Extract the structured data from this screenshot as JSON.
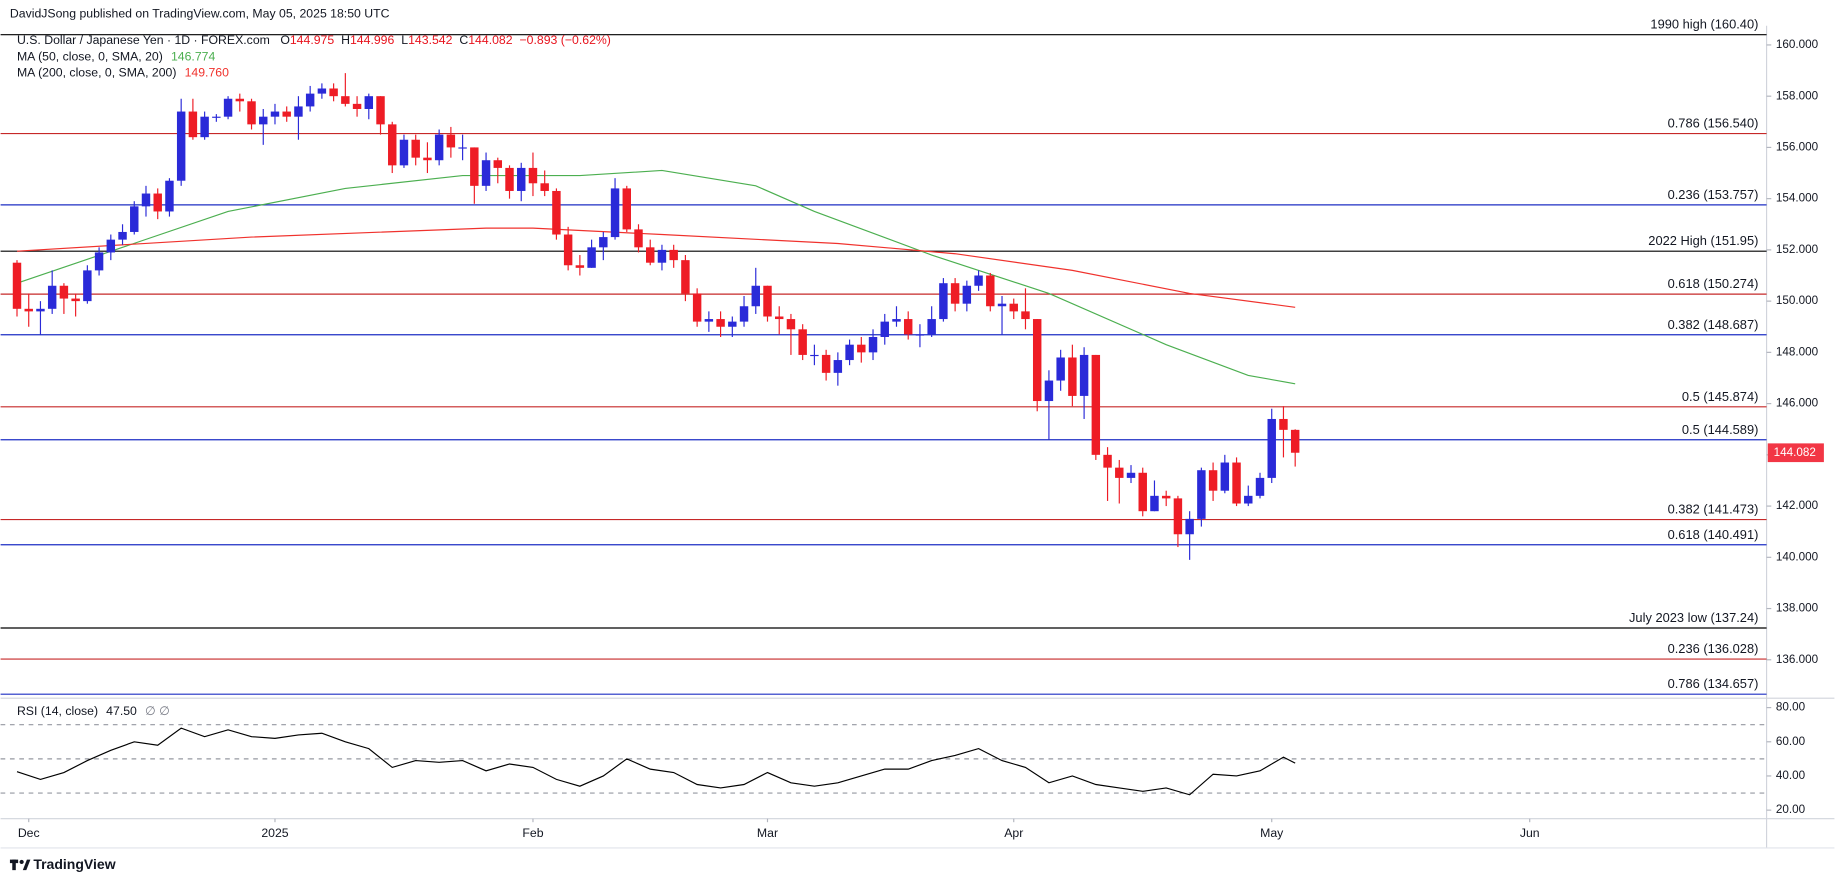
{
  "header": {
    "publisher": "DavidJSong published on TradingView.com, May 05, 2025 18:50 UTC",
    "symbol": "U.S. Dollar / Japanese Yen · 1D · FOREX.com",
    "ohlc_prefixes": [
      "O",
      "H",
      "L",
      "C"
    ],
    "change": "−0.893 (−0.62%)"
  },
  "chart_data": {
    "type": "candlestick",
    "up_color": "#2a2ad8",
    "down_color": "#ee1c25",
    "open": [
      151.5,
      149.7,
      149.6,
      149.7,
      150.6,
      150.1,
      150.0,
      151.2,
      151.9,
      152.4,
      152.7,
      153.7,
      154.2,
      153.5,
      154.7,
      157.4,
      156.4,
      157.2,
      157.2,
      157.9,
      157.8,
      156.9,
      157.2,
      157.4,
      157.2,
      157.6,
      158.1,
      158.3,
      158.0,
      157.7,
      157.5,
      158.0,
      156.9,
      155.3,
      156.3,
      155.6,
      155.5,
      156.5,
      156.0,
      156.0,
      154.5,
      155.5,
      155.2,
      154.3,
      155.2,
      154.6,
      154.3,
      152.6,
      151.4,
      151.3,
      152.1,
      152.5,
      154.4,
      152.8,
      152.1,
      151.5,
      152.0,
      151.6,
      150.3,
      149.2,
      149.3,
      149.0,
      149.2,
      149.8,
      150.6,
      149.4,
      149.3,
      148.9,
      147.9,
      147.9,
      147.2,
      147.7,
      148.3,
      148.0,
      148.6,
      149.2,
      149.3,
      148.7,
      148.7,
      149.3,
      150.7,
      149.9,
      150.6,
      151.0,
      149.8,
      149.9,
      149.6,
      149.3,
      146.1,
      146.9,
      147.8,
      146.3,
      147.9,
      144.0,
      143.5,
      143.1,
      143.3,
      141.8,
      142.4,
      142.3,
      140.9,
      141.5,
      143.4,
      142.6,
      143.7,
      142.1,
      142.4,
      143.1,
      145.4,
      144.975
    ],
    "high": [
      151.6,
      150.3,
      150.0,
      151.2,
      150.7,
      150.3,
      151.4,
      152.1,
      152.6,
      153.0,
      153.9,
      154.5,
      154.4,
      154.8,
      157.9,
      157.9,
      157.4,
      157.3,
      158.0,
      158.1,
      157.9,
      157.5,
      157.7,
      157.6,
      158.0,
      158.4,
      158.5,
      158.5,
      158.9,
      158.0,
      158.1,
      158.0,
      157.0,
      156.5,
      156.5,
      156.2,
      156.7,
      156.8,
      156.5,
      156.0,
      155.8,
      155.6,
      155.3,
      155.4,
      155.8,
      155.1,
      154.4,
      152.9,
      151.8,
      152.4,
      152.7,
      154.8,
      154.5,
      153.0,
      152.4,
      152.2,
      152.2,
      151.8,
      150.5,
      149.6,
      149.6,
      149.4,
      150.2,
      151.3,
      150.6,
      149.8,
      149.5,
      149.1,
      148.3,
      148.1,
      148.0,
      148.5,
      148.6,
      148.9,
      149.5,
      149.8,
      149.6,
      149.1,
      149.8,
      150.9,
      150.9,
      150.8,
      151.2,
      151.1,
      150.2,
      150.1,
      150.5,
      149.3,
      147.3,
      148.1,
      148.3,
      148.2,
      147.9,
      144.3,
      143.8,
      143.6,
      143.5,
      143.0,
      142.6,
      142.4,
      141.8,
      143.5,
      143.7,
      144.0,
      143.9,
      142.8,
      143.3,
      145.8,
      145.9,
      144.996
    ],
    "low": [
      149.4,
      149.0,
      148.7,
      149.5,
      149.5,
      149.4,
      149.9,
      151.0,
      151.6,
      152.2,
      152.6,
      153.3,
      153.2,
      153.3,
      154.5,
      156.3,
      156.3,
      157.0,
      157.1,
      157.4,
      156.7,
      156.1,
      156.9,
      157.0,
      156.3,
      157.4,
      157.9,
      157.8,
      157.6,
      157.2,
      157.1,
      156.5,
      155.0,
      155.2,
      155.3,
      155.0,
      155.3,
      155.6,
      155.5,
      153.8,
      154.3,
      154.6,
      154.0,
      153.9,
      154.1,
      154.1,
      152.4,
      151.2,
      151.0,
      151.3,
      151.6,
      152.4,
      152.7,
      151.9,
      151.4,
      151.2,
      151.3,
      150.0,
      149.0,
      148.8,
      148.6,
      148.6,
      149.0,
      149.5,
      149.2,
      148.7,
      147.9,
      147.7,
      147.5,
      146.9,
      146.7,
      147.5,
      147.6,
      147.7,
      148.3,
      149.0,
      148.5,
      148.2,
      148.6,
      149.2,
      149.6,
      149.6,
      150.4,
      149.6,
      148.7,
      149.3,
      148.9,
      145.7,
      144.6,
      146.5,
      145.9,
      145.4,
      143.8,
      142.2,
      142.1,
      142.9,
      141.6,
      141.8,
      142.0,
      140.4,
      139.9,
      141.2,
      142.2,
      142.5,
      142.0,
      142.0,
      142.3,
      142.9,
      143.9,
      143.542
    ],
    "close": [
      149.7,
      149.6,
      149.7,
      150.6,
      150.1,
      150.0,
      151.2,
      151.9,
      152.4,
      152.7,
      153.7,
      154.2,
      153.5,
      154.7,
      157.4,
      156.4,
      157.2,
      157.2,
      157.9,
      157.8,
      156.9,
      157.2,
      157.4,
      157.2,
      157.6,
      158.1,
      158.3,
      158.0,
      157.7,
      157.5,
      158.0,
      156.9,
      155.3,
      156.3,
      155.6,
      155.5,
      156.5,
      156.0,
      156.0,
      154.5,
      155.5,
      155.2,
      154.3,
      155.2,
      154.6,
      154.3,
      152.6,
      151.4,
      151.3,
      152.1,
      152.5,
      154.4,
      152.8,
      152.1,
      151.5,
      152.0,
      151.6,
      150.3,
      149.2,
      149.3,
      149.0,
      149.2,
      149.8,
      150.6,
      149.4,
      149.3,
      148.9,
      147.9,
      147.9,
      147.2,
      147.7,
      148.3,
      148.0,
      148.6,
      149.2,
      149.3,
      148.7,
      148.7,
      149.3,
      150.7,
      149.9,
      150.6,
      151.0,
      149.8,
      149.9,
      149.6,
      149.3,
      146.1,
      146.9,
      147.8,
      146.3,
      147.9,
      144.0,
      143.5,
      143.1,
      143.3,
      141.8,
      142.4,
      142.3,
      140.9,
      141.5,
      143.4,
      142.6,
      143.7,
      142.1,
      142.4,
      143.1,
      145.4,
      144.975,
      144.082
    ],
    "xlim": [
      -1.4,
      149.2
    ],
    "xticks": [
      {
        "value": 1,
        "label": "Dec"
      },
      {
        "value": 22,
        "label": "2025"
      },
      {
        "value": 44,
        "label": "Feb"
      },
      {
        "value": 64,
        "label": "Mar"
      },
      {
        "value": 85,
        "label": "Apr"
      },
      {
        "value": 107,
        "label": "May"
      },
      {
        "value": 129,
        "label": "Jun"
      }
    ],
    "ylim": [
      134.5,
      160.75
    ],
    "yticks": [
      {
        "value": 136,
        "label": "136.000"
      },
      {
        "value": 138,
        "label": "138.000"
      },
      {
        "value": 140,
        "label": "140.000"
      },
      {
        "value": 142,
        "label": "142.000"
      },
      {
        "value": 144,
        "label": "144.000"
      },
      {
        "value": 146,
        "label": "146.000"
      },
      {
        "value": 148,
        "label": "148.000"
      },
      {
        "value": 150,
        "label": "150.000"
      },
      {
        "value": 152,
        "label": "152.000"
      },
      {
        "value": 154,
        "label": "154.000"
      },
      {
        "value": 156,
        "label": "156.000"
      },
      {
        "value": 158,
        "label": "158.000"
      },
      {
        "value": 160,
        "label": "160.000"
      }
    ],
    "last_price_color": "#f23645",
    "overlays": [
      {
        "name": "MA (50, close, 0, SMA, 20)",
        "color": "#4caf50",
        "last_label": "146.774",
        "x": [
          0,
          9,
          18,
          28,
          38,
          48,
          55,
          63,
          68,
          78,
          88,
          98,
          105,
          109
        ],
        "values": [
          150.7,
          152.1,
          153.5,
          154.4,
          154.9,
          154.9,
          155.1,
          154.5,
          153.5,
          151.8,
          150.3,
          148.3,
          147.1,
          146.774
        ]
      },
      {
        "name": "MA (200, close, 0, SMA, 200)",
        "color": "#f0322d",
        "last_label": "149.760",
        "x": [
          0,
          20,
          40,
          44,
          55,
          70,
          80,
          90,
          100,
          109
        ],
        "values": [
          151.95,
          152.5,
          152.85,
          152.85,
          152.6,
          152.25,
          151.85,
          151.2,
          150.3,
          149.76
        ]
      }
    ],
    "levels": [
      {
        "label": "1990 high (160.40)",
        "value": 160.4,
        "color": "#000000"
      },
      {
        "label": "0.786 (156.540)",
        "value": 156.54,
        "color": "#c62828"
      },
      {
        "label": "0.236 (153.757)",
        "value": 153.757,
        "color": "#1e2fc4"
      },
      {
        "label": "2022 High (151.95)",
        "value": 151.95,
        "color": "#000000"
      },
      {
        "label": "0.618 (150.274)",
        "value": 150.274,
        "color": "#c62828"
      },
      {
        "label": "0.382 (148.687)",
        "value": 148.687,
        "color": "#1e2fc4"
      },
      {
        "label": "0.5 (145.874)",
        "value": 145.874,
        "color": "#c62828"
      },
      {
        "label": "0.5 (144.589)",
        "value": 144.589,
        "color": "#1e2fc4"
      },
      {
        "label": "0.382 (141.473)",
        "value": 141.473,
        "color": "#c62828"
      },
      {
        "label": "0.618 (140.491)",
        "value": 140.491,
        "color": "#1e2fc4"
      },
      {
        "label": "July 2023 low (137.24)",
        "value": 137.24,
        "color": "#000000"
      },
      {
        "label": "0.236 (136.028)",
        "value": 136.028,
        "color": "#c62828"
      },
      {
        "label": "0.786 (134.657)",
        "value": 134.657,
        "color": "#1e2fc4"
      }
    ],
    "rsi": {
      "name": "RSI (14, close)",
      "last_label": "47.50",
      "extra": "∅ ∅",
      "color": "#000000",
      "x": [
        0,
        2,
        4,
        6,
        8,
        10,
        12,
        14,
        16,
        18,
        20,
        22,
        24,
        26,
        28,
        30,
        32,
        34,
        36,
        38,
        40,
        42,
        44,
        46,
        48,
        50,
        52,
        54,
        56,
        58,
        60,
        62,
        64,
        66,
        68,
        70,
        72,
        74,
        76,
        78,
        80,
        82,
        84,
        86,
        88,
        90,
        92,
        94,
        96,
        98,
        100,
        102,
        104,
        106,
        108,
        109
      ],
      "values": [
        42.5,
        38,
        42,
        49,
        55,
        60,
        58,
        68,
        63,
        67,
        63,
        62,
        64,
        65,
        60,
        56,
        45,
        49,
        48,
        49,
        43,
        47,
        45,
        38,
        34,
        40,
        50,
        44,
        42,
        35,
        33,
        35,
        42,
        36,
        34,
        36,
        40,
        44,
        44,
        49,
        52,
        56,
        49,
        45,
        36,
        40,
        35,
        33,
        31,
        33,
        29,
        41,
        40,
        43,
        51,
        47.5
      ],
      "ylim": [
        15,
        85.5
      ],
      "yticks": [
        {
          "value": 20,
          "label": "20.00"
        },
        {
          "value": 40,
          "label": "40.00"
        },
        {
          "value": 60,
          "label": "60.00"
        },
        {
          "value": 80,
          "label": "80.00"
        }
      ],
      "bands": [
        70,
        50,
        30
      ]
    }
  },
  "footer": {
    "brand": "TradingView"
  }
}
